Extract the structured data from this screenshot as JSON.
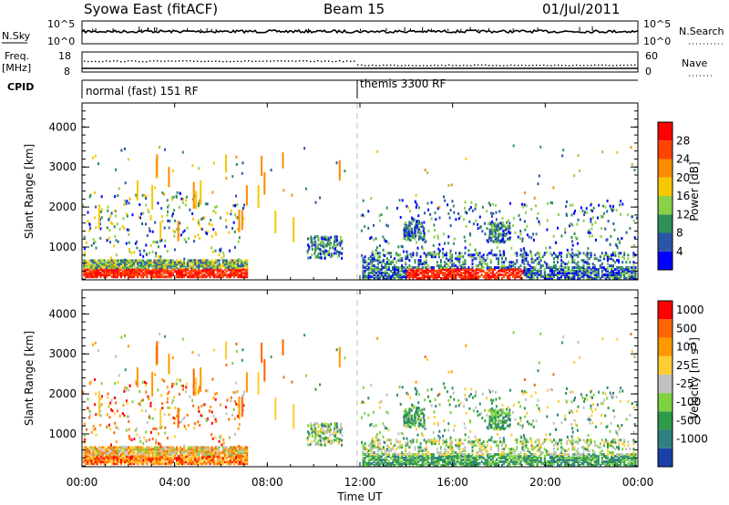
{
  "header": {
    "title": "Syowa East (fitACF)",
    "beam": "Beam 15",
    "date": "01/Jul/2011"
  },
  "nsky_panel": {
    "left_label": "N.Sky",
    "right_label": "N.Search",
    "left_ticks": [
      "10^5",
      "10^0"
    ],
    "right_ticks": [
      "10^5",
      "10^0"
    ]
  },
  "freq_panel": {
    "left_label_1": "Freq.",
    "left_label_2": "[MHz]",
    "right_label": "Nave",
    "left_ticks": [
      "18",
      "8"
    ],
    "right_ticks": [
      "60",
      "0"
    ]
  },
  "cpid": {
    "label": "CPID",
    "segments": [
      {
        "label": "normal (fast) 151 RF",
        "start_hour": 0
      },
      {
        "label": "themis 3300 RF",
        "start_hour": 12
      }
    ]
  },
  "chart_data": [
    {
      "type": "heatmap",
      "name": "power",
      "ylabel": "Slant Range [km]",
      "ylim": [
        180,
        4600
      ],
      "yticks": [
        1000,
        2000,
        3000,
        4000
      ],
      "xlim": [
        0,
        24
      ],
      "colorbar": {
        "label": "Power [dB]",
        "ticks": [
          "4",
          "8",
          "12",
          "16",
          "20",
          "24",
          "28"
        ],
        "colors": [
          "#0000ff",
          "#2b56a8",
          "#2f8f5a",
          "#8bd049",
          "#f5c800",
          "#ff8c00",
          "#ff4400",
          "#ff0000"
        ]
      }
    },
    {
      "type": "heatmap",
      "name": "velocity",
      "ylabel": "Slant Range [km]",
      "ylim": [
        180,
        4600
      ],
      "yticks": [
        1000,
        2000,
        3000,
        4000
      ],
      "xlim": [
        0,
        24
      ],
      "colorbar": {
        "label": "Velocity [m s",
        "label_sup": "-1",
        "label_end": "]",
        "ticks": [
          "1000",
          "500",
          "100",
          "25",
          "-25",
          "-100",
          "-500",
          "-1000"
        ],
        "colors": [
          "#1a3fa8",
          "#2f8080",
          "#2e9a4a",
          "#7ed23f",
          "#c0c0c0",
          "#ffcc33",
          "#ff9900",
          "#ff6600",
          "#ff0000"
        ]
      }
    }
  ],
  "x_axis": {
    "label": "Time UT",
    "ticks": [
      {
        "hour": 0,
        "label": "00:00"
      },
      {
        "hour": 4,
        "label": "04:00"
      },
      {
        "hour": 8,
        "label": "08:00"
      },
      {
        "hour": 12,
        "label": "12:00"
      },
      {
        "hour": 16,
        "label": "16:00"
      },
      {
        "hour": 20,
        "label": "20:00"
      },
      {
        "hour": 24,
        "label": "00:00"
      }
    ]
  },
  "colors": {
    "background": "#ffffff",
    "axis": "#000000",
    "midnight_marker": "#bbbbbb"
  }
}
